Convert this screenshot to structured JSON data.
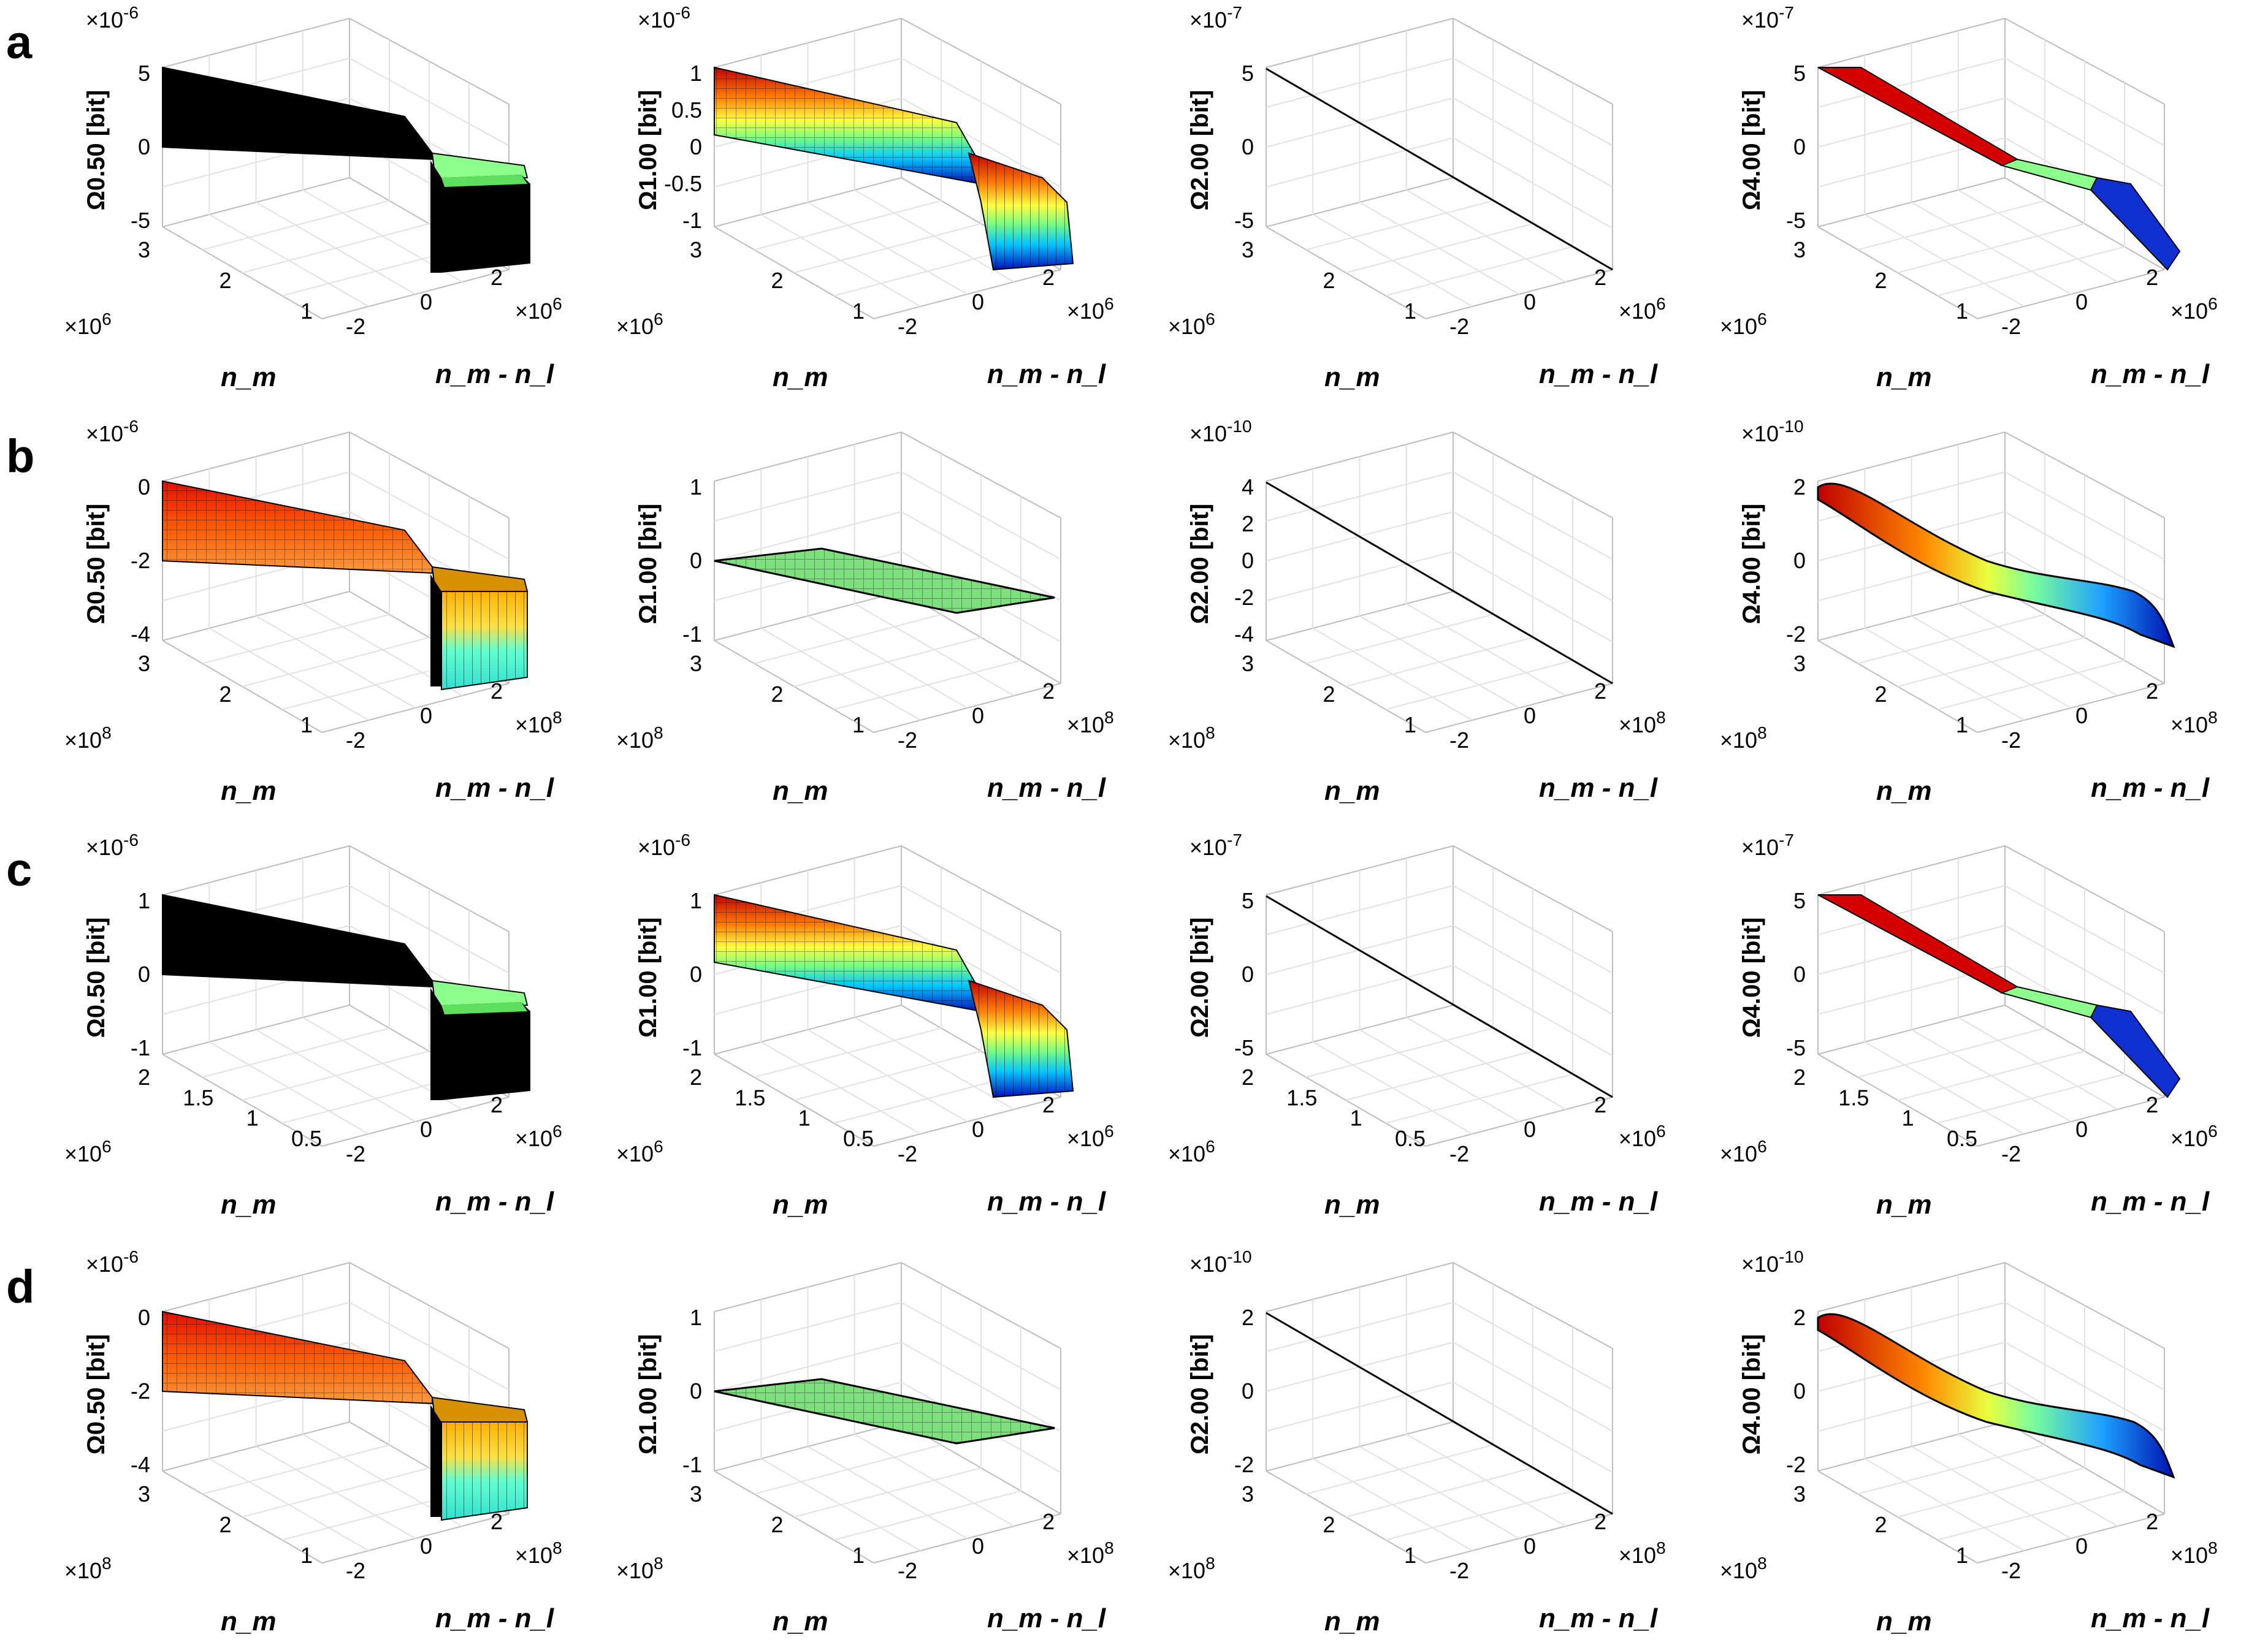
{
  "figure": {
    "rows": [
      {
        "label": "a",
        "nm_multiplier": "×10^6",
        "diff_multiplier": "×10^6"
      },
      {
        "label": "b",
        "nm_multiplier": "×10^8",
        "diff_multiplier": "×10^8"
      },
      {
        "label": "c",
        "nm_multiplier": "×10^6",
        "diff_multiplier": "×10^6"
      },
      {
        "label": "d",
        "nm_multiplier": "×10^8",
        "diff_multiplier": "×10^8"
      }
    ],
    "axis_labels": {
      "x": "n_m - n_l",
      "y": "n_m",
      "z_unit": "[bit]"
    },
    "columns": [
      {
        "order": "0.50"
      },
      {
        "order": "1.00"
      },
      {
        "order": "2.00"
      },
      {
        "order": "4.00"
      }
    ]
  },
  "colors": {
    "axis": "#000000",
    "grid": "#e2e2e2",
    "box": "#bdbdbd",
    "panel_label": "#000000"
  },
  "chart_data": [
    {
      "type": "surface",
      "panel": "a1",
      "zlabel": "Ω0.50 [bit]",
      "z_multiplier": "×10^-6",
      "z_ticks": [
        "5",
        "0",
        "-5"
      ],
      "y_ticks": [
        "3",
        "2",
        "1"
      ],
      "x_ticks": [
        "-2",
        "0",
        "2"
      ],
      "y_multiplier": "×10^6",
      "x_multiplier": "×10^6",
      "style": "black-step"
    },
    {
      "type": "surface",
      "panel": "a2",
      "zlabel": "Ω1.00 [bit]",
      "z_multiplier": "×10^-6",
      "z_ticks": [
        "1",
        "0.5",
        "0",
        "-0.5",
        "-1"
      ],
      "y_ticks": [
        "3",
        "2",
        "1"
      ],
      "x_ticks": [
        "-2",
        "0",
        "2"
      ],
      "y_multiplier": "×10^6",
      "x_multiplier": "×10^6",
      "style": "jet-step"
    },
    {
      "type": "surface",
      "panel": "a3",
      "zlabel": "Ω2.00 [bit]",
      "z_multiplier": "×10^-7",
      "z_ticks": [
        "5",
        "0",
        "-5"
      ],
      "y_ticks": [
        "3",
        "2",
        "1"
      ],
      "x_ticks": [
        "-2",
        "0",
        "2"
      ],
      "y_multiplier": "×10^6",
      "x_multiplier": "×10^6",
      "style": "line"
    },
    {
      "type": "surface",
      "panel": "a4",
      "zlabel": "Ω4.00 [bit]",
      "z_multiplier": "×10^-7",
      "z_ticks": [
        "5",
        "0",
        "-5"
      ],
      "y_ticks": [
        "3",
        "2",
        "1"
      ],
      "x_ticks": [
        "-2",
        "0",
        "2"
      ],
      "y_multiplier": "×10^6",
      "x_multiplier": "×10^6",
      "style": "jet-ramp"
    },
    {
      "type": "surface",
      "panel": "b1",
      "zlabel": "Ω0.50 [bit]",
      "z_multiplier": "×10^-6",
      "z_ticks": [
        "0",
        "-2",
        "-4"
      ],
      "y_ticks": [
        "3",
        "2",
        "1"
      ],
      "x_ticks": [
        "-2",
        "0",
        "2"
      ],
      "y_multiplier": "×10^8",
      "x_multiplier": "×10^8",
      "style": "hot-step"
    },
    {
      "type": "surface",
      "panel": "b2",
      "zlabel": "Ω1.00 [bit]",
      "z_multiplier": "",
      "z_ticks": [
        "1",
        "0",
        "-1"
      ],
      "y_ticks": [
        "3",
        "2",
        "1"
      ],
      "x_ticks": [
        "-2",
        "0",
        "2"
      ],
      "y_multiplier": "×10^8",
      "x_multiplier": "×10^8",
      "style": "flat"
    },
    {
      "type": "surface",
      "panel": "b3",
      "zlabel": "Ω2.00 [bit]",
      "z_multiplier": "×10^-10",
      "z_ticks": [
        "4",
        "2",
        "0",
        "-2",
        "-4"
      ],
      "y_ticks": [
        "3",
        "2",
        "1"
      ],
      "x_ticks": [
        "-2",
        "0",
        "2"
      ],
      "y_multiplier": "×10^8",
      "x_multiplier": "×10^8",
      "style": "line"
    },
    {
      "type": "surface",
      "panel": "b4",
      "zlabel": "Ω4.00 [bit]",
      "z_multiplier": "×10^-10",
      "z_ticks": [
        "2",
        "0",
        "-2"
      ],
      "y_ticks": [
        "3",
        "2",
        "1"
      ],
      "x_ticks": [
        "-2",
        "0",
        "2"
      ],
      "y_multiplier": "×10^8",
      "x_multiplier": "×10^8",
      "style": "jet-smooth"
    },
    {
      "type": "surface",
      "panel": "c1",
      "zlabel": "Ω0.50 [bit]",
      "z_multiplier": "×10^-6",
      "z_ticks": [
        "1",
        "0",
        "-1"
      ],
      "y_ticks": [
        "2",
        "1.5",
        "1",
        "0.5"
      ],
      "x_ticks": [
        "-2",
        "0",
        "2"
      ],
      "y_multiplier": "×10^6",
      "x_multiplier": "×10^6",
      "style": "black-step"
    },
    {
      "type": "surface",
      "panel": "c2",
      "zlabel": "Ω1.00 [bit]",
      "z_multiplier": "×10^-6",
      "z_ticks": [
        "1",
        "0",
        "-1"
      ],
      "y_ticks": [
        "2",
        "1.5",
        "1",
        "0.5"
      ],
      "x_ticks": [
        "-2",
        "0",
        "2"
      ],
      "y_multiplier": "×10^6",
      "x_multiplier": "×10^6",
      "style": "jet-step"
    },
    {
      "type": "surface",
      "panel": "c3",
      "zlabel": "Ω2.00 [bit]",
      "z_multiplier": "×10^-7",
      "z_ticks": [
        "5",
        "0",
        "-5"
      ],
      "y_ticks": [
        "2",
        "1.5",
        "1",
        "0.5"
      ],
      "x_ticks": [
        "-2",
        "0",
        "2"
      ],
      "y_multiplier": "×10^6",
      "x_multiplier": "×10^6",
      "style": "line"
    },
    {
      "type": "surface",
      "panel": "c4",
      "zlabel": "Ω4.00 [bit]",
      "z_multiplier": "×10^-7",
      "z_ticks": [
        "5",
        "0",
        "-5"
      ],
      "y_ticks": [
        "2",
        "1.5",
        "1",
        "0.5"
      ],
      "x_ticks": [
        "-2",
        "0",
        "2"
      ],
      "y_multiplier": "×10^6",
      "x_multiplier": "×10^6",
      "style": "jet-ramp"
    },
    {
      "type": "surface",
      "panel": "d1",
      "zlabel": "Ω0.50 [bit]",
      "z_multiplier": "×10^-6",
      "z_ticks": [
        "0",
        "-2",
        "-4"
      ],
      "y_ticks": [
        "3",
        "2",
        "1"
      ],
      "x_ticks": [
        "-2",
        "0",
        "2"
      ],
      "y_multiplier": "×10^8",
      "x_multiplier": "×10^8",
      "style": "hot-step"
    },
    {
      "type": "surface",
      "panel": "d2",
      "zlabel": "Ω1.00 [bit]",
      "z_multiplier": "",
      "z_ticks": [
        "1",
        "0",
        "-1"
      ],
      "y_ticks": [
        "3",
        "2",
        "1"
      ],
      "x_ticks": [
        "-2",
        "0",
        "2"
      ],
      "y_multiplier": "×10^8",
      "x_multiplier": "×10^8",
      "style": "flat"
    },
    {
      "type": "surface",
      "panel": "d3",
      "zlabel": "Ω2.00 [bit]",
      "z_multiplier": "×10^-10",
      "z_ticks": [
        "2",
        "0",
        "-2"
      ],
      "y_ticks": [
        "3",
        "2",
        "1"
      ],
      "x_ticks": [
        "-2",
        "0",
        "2"
      ],
      "y_multiplier": "×10^8",
      "x_multiplier": "×10^8",
      "style": "line"
    },
    {
      "type": "surface",
      "panel": "d4",
      "zlabel": "Ω4.00 [bit]",
      "z_multiplier": "×10^-10",
      "z_ticks": [
        "2",
        "0",
        "-2"
      ],
      "y_ticks": [
        "3",
        "2",
        "1"
      ],
      "x_ticks": [
        "-2",
        "0",
        "2"
      ],
      "y_multiplier": "×10^8",
      "x_multiplier": "×10^8",
      "style": "jet-smooth"
    }
  ]
}
